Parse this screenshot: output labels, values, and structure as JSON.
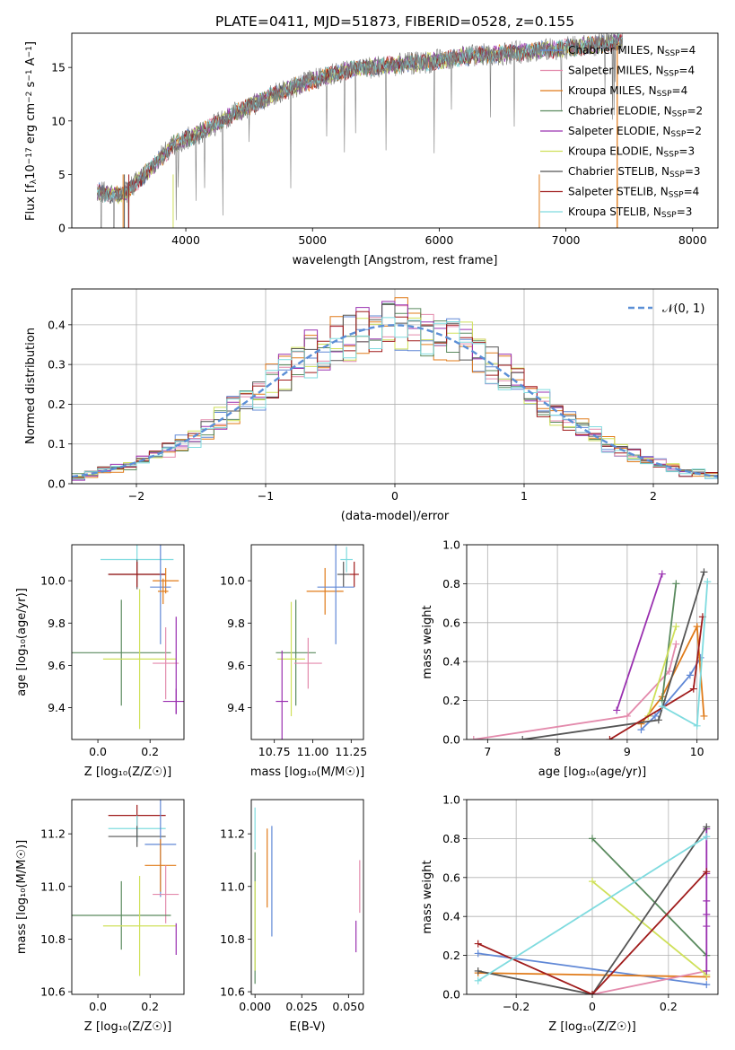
{
  "colors": {
    "Chabrier MILES": "#6088d6",
    "Salpeter MILES": "#e38aac",
    "Kroupa MILES": "#e07b1a",
    "Chabrier ELODIE": "#5a8a5e",
    "Salpeter ELODIE": "#9a30b0",
    "Kroupa ELODIE": "#cfe05a",
    "Chabrier STELIB": "#555555",
    "Salpeter STELIB": "#a01c1c",
    "Kroupa STELIB": "#7fdbdf",
    "gaussian": "#5b8fd6",
    "grid": "#b0b0b0"
  },
  "chart_data": [
    {
      "id": "spectrum",
      "type": "line",
      "title": "PLATE=0411, MJD=51873, FIBERID=0528, z=0.155",
      "xlabel": "wavelength [Angstrom, rest frame]",
      "ylabel_prefix": "Flux [f",
      "ylabel_sub": "λ",
      "ylabel_mid": "10",
      "ylabel_sup": "−17",
      "ylabel_tail": " erg cm",
      "ylabel_sup2": "−2",
      "ylabel_tail2": " s",
      "ylabel_sup3": "−1",
      "ylabel_tail3": " A",
      "ylabel_sup4": "−1",
      "ylabel_end": "]",
      "xlim": [
        3100,
        8200
      ],
      "ylim": [
        0,
        18.2
      ],
      "xticks": [
        4000,
        5000,
        6000,
        7000,
        8000
      ],
      "yticks": [
        0,
        5,
        10,
        15
      ],
      "grid": false,
      "legend_position": "top-right",
      "spectrum_shape": [
        [
          3300,
          3.4
        ],
        [
          3500,
          3.0
        ],
        [
          3700,
          5.3
        ],
        [
          3900,
          7.8
        ],
        [
          4100,
          8.8
        ],
        [
          4400,
          10.8
        ],
        [
          4700,
          12.5
        ],
        [
          5000,
          13.8
        ],
        [
          5300,
          14.8
        ],
        [
          5600,
          15.2
        ],
        [
          5900,
          15.5
        ],
        [
          6200,
          16.0
        ],
        [
          6600,
          16.4
        ],
        [
          7000,
          16.8
        ],
        [
          7300,
          17.2
        ],
        [
          7500,
          17.5
        ]
      ],
      "legend": [
        {
          "name": "Chabrier MILES",
          "nssp": "4"
        },
        {
          "name": "Salpeter MILES",
          "nssp": "4"
        },
        {
          "name": "Kroupa MILES",
          "nssp": "4"
        },
        {
          "name": "Chabrier ELODIE",
          "nssp": "2"
        },
        {
          "name": "Salpeter ELODIE",
          "nssp": "2"
        },
        {
          "name": "Kroupa ELODIE",
          "nssp": "3"
        },
        {
          "name": "Chabrier STELIB",
          "nssp": "3"
        },
        {
          "name": "Salpeter STELIB",
          "nssp": "4"
        },
        {
          "name": "Kroupa STELIB",
          "nssp": "3"
        }
      ],
      "nssp_prefix": "N",
      "nssp_sub": "SSP"
    },
    {
      "id": "residuals",
      "type": "line",
      "xlabel": "(data-model)/error",
      "ylabel": "Normed distribution",
      "xlim": [
        -2.5,
        2.5
      ],
      "ylim": [
        0,
        0.49
      ],
      "xticks": [
        -2,
        -1,
        0,
        1,
        2
      ],
      "yticks": [
        0.0,
        0.1,
        0.2,
        0.3,
        0.4
      ],
      "grid": true,
      "legend_position": "top-right",
      "gaussian_label": "𝒩(0, 1)",
      "bin_width": 0.1
    },
    {
      "id": "age_vs_Z",
      "type": "scatter",
      "xlabel": "Z [log₁₀(Z/Z☉)]",
      "ylabel": "age  [log₁₀(age/yr)]",
      "xlim": [
        -0.1,
        0.33
      ],
      "ylim": [
        9.25,
        10.17
      ],
      "xticks": [
        0.0,
        0.2
      ],
      "yticks": [
        9.4,
        9.6,
        9.8,
        10.0
      ],
      "grid": false,
      "points": [
        {
          "model": "Kroupa STELIB",
          "x": 0.15,
          "xerr": 0.14,
          "y": 10.1,
          "yerr": 0.08
        },
        {
          "model": "Chabrier STELIB",
          "x": 0.15,
          "xerr": 0.11,
          "y": 10.03,
          "yerr": 0.07
        },
        {
          "model": "Salpeter STELIB",
          "x": 0.15,
          "xerr": 0.11,
          "y": 10.03,
          "yerr": 0.06
        },
        {
          "model": "Kroupa MILES",
          "x": 0.26,
          "xerr": 0.05,
          "y": 10.0,
          "yerr": 0.06
        },
        {
          "model": "Chabrier MILES",
          "x": 0.24,
          "xerr": 0.04,
          "y": 9.97,
          "yerr": 0.27
        },
        {
          "model": "Kroupa MILES",
          "x": 0.25,
          "xerr": 0.02,
          "y": 9.95,
          "yerr": 0.06
        },
        {
          "model": "Chabrier ELODIE",
          "x": 0.09,
          "xerr": 0.19,
          "y": 9.66,
          "yerr": 0.25
        },
        {
          "model": "Kroupa ELODIE",
          "x": 0.16,
          "xerr": 0.14,
          "y": 9.63,
          "yerr": 0.33
        },
        {
          "model": "Salpeter MILES",
          "x": 0.26,
          "xerr": 0.05,
          "y": 9.61,
          "yerr": 0.17
        },
        {
          "model": "Salpeter ELODIE",
          "x": 0.3,
          "xerr": 0.05,
          "y": 9.43,
          "yerr": 0.06
        },
        {
          "model": "Salpeter ELODIE",
          "x": 0.3,
          "xerr": 0.0,
          "y": 9.6,
          "yerr": 0.23
        }
      ]
    },
    {
      "id": "age_vs_mass",
      "type": "scatter",
      "xlabel": "mass [log₁₀(M/M☉)]",
      "xlim": [
        10.6,
        11.33
      ],
      "ylim": [
        9.25,
        10.17
      ],
      "xticks": [
        10.75,
        11.0,
        11.25
      ],
      "yticks": [
        9.4,
        9.6,
        9.8,
        10.0
      ],
      "grid": false,
      "points": [
        {
          "model": "Kroupa STELIB",
          "x": 11.22,
          "xerr": 0.04,
          "y": 10.1,
          "yerr": 0.06
        },
        {
          "model": "Chabrier STELIB",
          "x": 11.2,
          "xerr": 0.04,
          "y": 10.03,
          "yerr": 0.06
        },
        {
          "model": "Salpeter STELIB",
          "x": 11.27,
          "xerr": 0.03,
          "y": 10.03,
          "yerr": 0.06
        },
        {
          "model": "Kroupa MILES",
          "x": 11.08,
          "xerr": 0.12,
          "y": 9.95,
          "yerr": 0.11
        },
        {
          "model": "Chabrier MILES",
          "x": 11.15,
          "xerr": 0.12,
          "y": 9.97,
          "yerr": 0.27
        },
        {
          "model": "Chabrier ELODIE",
          "x": 10.89,
          "xerr": 0.13,
          "y": 9.66,
          "yerr": 0.25
        },
        {
          "model": "Kroupa ELODIE",
          "x": 10.86,
          "xerr": 0.09,
          "y": 9.63,
          "yerr": 0.27
        },
        {
          "model": "Salpeter MILES",
          "x": 10.97,
          "xerr": 0.09,
          "y": 9.61,
          "yerr": 0.12
        },
        {
          "model": "Salpeter ELODIE",
          "x": 10.8,
          "xerr": 0.04,
          "y": 9.43,
          "yerr": 0.24
        }
      ]
    },
    {
      "id": "weight_vs_age",
      "type": "line",
      "xlabel": "age  [log₁₀(age/yr)]",
      "ylabel": "mass weight",
      "xlim": [
        6.7,
        10.3
      ],
      "ylim": [
        0,
        1.0
      ],
      "xticks": [
        7,
        8,
        9,
        10
      ],
      "yticks": [
        0.0,
        0.2,
        0.4,
        0.6,
        0.8,
        1.0
      ],
      "grid": true,
      "series": [
        {
          "model": "Salpeter MILES",
          "x": [
            6.8,
            9.0,
            9.6,
            9.7
          ],
          "y": [
            0.0,
            0.12,
            0.35,
            0.49
          ]
        },
        {
          "model": "Chabrier MILES",
          "x": [
            9.2,
            9.4,
            9.9,
            10.05
          ],
          "y": [
            0.05,
            0.12,
            0.33,
            0.42
          ]
        },
        {
          "model": "Kroupa MILES",
          "x": [
            9.2,
            9.5,
            10.0,
            10.1
          ],
          "y": [
            0.08,
            0.22,
            0.58,
            0.12
          ]
        },
        {
          "model": "Chabrier ELODIE",
          "x": [
            9.5,
            9.7
          ],
          "y": [
            0.2,
            0.8
          ]
        },
        {
          "model": "Salpeter ELODIE",
          "x": [
            8.85,
            9.5
          ],
          "y": [
            0.15,
            0.85
          ]
        },
        {
          "model": "Kroupa ELODIE",
          "x": [
            9.3,
            9.7
          ],
          "y": [
            0.12,
            0.58
          ]
        },
        {
          "model": "Chabrier STELIB",
          "x": [
            7.5,
            9.45,
            10.1
          ],
          "y": [
            0.0,
            0.1,
            0.86
          ]
        },
        {
          "model": "Salpeter STELIB",
          "x": [
            8.75,
            9.95,
            10.08
          ],
          "y": [
            0.0,
            0.26,
            0.63
          ]
        },
        {
          "model": "Kroupa STELIB",
          "x": [
            9.5,
            10.0,
            10.15
          ],
          "y": [
            0.17,
            0.07,
            0.81
          ]
        }
      ]
    },
    {
      "id": "mass_vs_Z",
      "type": "scatter",
      "xlabel": "Z [log₁₀(Z/Z☉)]",
      "ylabel": "mass [log₁₀(M/M☉)]",
      "xlim": [
        -0.1,
        0.33
      ],
      "ylim": [
        10.59,
        11.33
      ],
      "xticks": [
        0.0,
        0.2
      ],
      "yticks": [
        10.6,
        10.8,
        11.0,
        11.2
      ],
      "grid": false,
      "points": [
        {
          "model": "Salpeter STELIB",
          "x": 0.15,
          "xerr": 0.11,
          "y": 11.27,
          "yerr": 0.04
        },
        {
          "model": "Kroupa STELIB",
          "x": 0.15,
          "xerr": 0.11,
          "y": 11.22,
          "yerr": 0.05
        },
        {
          "model": "Chabrier STELIB",
          "x": 0.15,
          "xerr": 0.11,
          "y": 11.19,
          "yerr": 0.04
        },
        {
          "model": "Chabrier MILES",
          "x": 0.24,
          "xerr": 0.06,
          "y": 11.16,
          "yerr": 0.2
        },
        {
          "model": "Kroupa MILES",
          "x": 0.24,
          "xerr": 0.06,
          "y": 11.08,
          "yerr": 0.1
        },
        {
          "model": "Salpeter MILES",
          "x": 0.26,
          "xerr": 0.05,
          "y": 10.97,
          "yerr": 0.11
        },
        {
          "model": "Chabrier ELODIE",
          "x": 0.09,
          "xerr": 0.19,
          "y": 10.89,
          "yerr": 0.13
        },
        {
          "model": "Kroupa ELODIE",
          "x": 0.16,
          "xerr": 0.14,
          "y": 10.85,
          "yerr": 0.19
        },
        {
          "model": "Salpeter ELODIE",
          "x": 0.3,
          "xerr": 0.0,
          "y": 10.8,
          "yerr": 0.06
        }
      ]
    },
    {
      "id": "mass_vs_ebv",
      "type": "scatter",
      "xlabel": "E(B-V)",
      "xlim": [
        -0.002,
        0.058
      ],
      "ylim": [
        10.59,
        11.33
      ],
      "xticks": [
        0.0,
        0.025,
        0.05
      ],
      "yticks": [
        10.6,
        10.8,
        11.0,
        11.2
      ],
      "grid": false,
      "points": [
        {
          "model": "Kroupa STELIB",
          "x": 0.0,
          "xerr": 0.0,
          "y": 11.22,
          "yerr": 0.08
        },
        {
          "model": "Chabrier MILES",
          "x": 0.009,
          "xerr": 0.0,
          "y": 11.02,
          "yerr": 0.21
        },
        {
          "model": "Kroupa MILES",
          "x": 0.0065,
          "xerr": 0.0,
          "y": 11.07,
          "yerr": 0.15
        },
        {
          "model": "Chabrier ELODIE",
          "x": 0.0,
          "xerr": 0.0,
          "y": 10.88,
          "yerr": 0.25
        },
        {
          "model": "Kroupa ELODIE",
          "x": 0.0,
          "xerr": 0.0,
          "y": 10.85,
          "yerr": 0.17
        },
        {
          "model": "Salpeter MILES",
          "x": 0.056,
          "xerr": 0.0,
          "y": 11.0,
          "yerr": 0.1
        },
        {
          "model": "Salpeter ELODIE",
          "x": 0.054,
          "xerr": 0.0,
          "y": 10.81,
          "yerr": 0.06
        }
      ]
    },
    {
      "id": "weight_vs_Z",
      "type": "line",
      "xlabel": "Z [log₁₀(Z/Z☉)]",
      "ylabel": "mass weight",
      "xlim": [
        -0.33,
        0.33
      ],
      "ylim": [
        0,
        1.0
      ],
      "xticks": [
        -0.2,
        0.0,
        0.2
      ],
      "yticks": [
        0.0,
        0.2,
        0.4,
        0.6,
        0.8,
        1.0
      ],
      "grid": true,
      "series": [
        {
          "model": "Chabrier MILES",
          "x": [
            -0.3,
            0.3
          ],
          "y": [
            0.21,
            0.05
          ]
        },
        {
          "model": "Kroupa MILES",
          "x": [
            -0.3,
            0.3
          ],
          "y": [
            0.11,
            0.09
          ]
        },
        {
          "model": "Salpeter MILES",
          "x": [
            0.0,
            0.3
          ],
          "y": [
            0.0,
            0.12
          ]
        },
        {
          "model": "Chabrier ELODIE",
          "x": [
            0.0,
            0.3
          ],
          "y": [
            0.8,
            0.2
          ]
        },
        {
          "model": "Kroupa ELODIE",
          "x": [
            0.0,
            0.3
          ],
          "y": [
            0.58,
            0.1
          ]
        },
        {
          "model": "Salpeter ELODIE",
          "x": [
            0.3,
            0.3,
            0.3,
            0.3,
            0.3,
            0.3
          ],
          "y": [
            0.85,
            0.62,
            0.48,
            0.41,
            0.35,
            0.12
          ]
        },
        {
          "model": "Chabrier STELIB",
          "x": [
            -0.3,
            0.0,
            0.3
          ],
          "y": [
            0.12,
            0.0,
            0.86
          ]
        },
        {
          "model": "Salpeter STELIB",
          "x": [
            -0.3,
            0.0,
            0.3
          ],
          "y": [
            0.26,
            0.0,
            0.63
          ]
        },
        {
          "model": "Kroupa STELIB",
          "x": [
            -0.3,
            0.3
          ],
          "y": [
            0.07,
            0.81
          ]
        }
      ]
    }
  ]
}
